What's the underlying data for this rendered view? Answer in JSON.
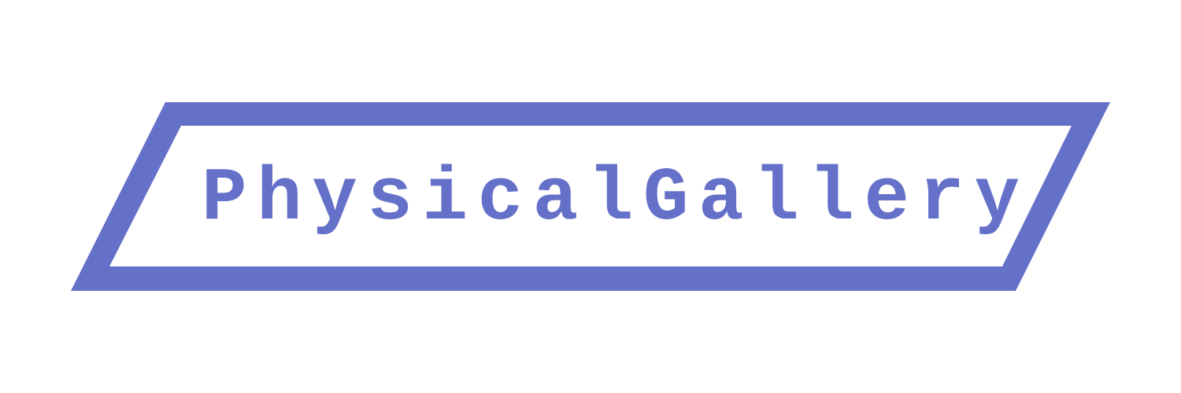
{
  "logo": {
    "text": "PhysicalGallery",
    "color": "#6570c9",
    "background": "#ffffff"
  }
}
